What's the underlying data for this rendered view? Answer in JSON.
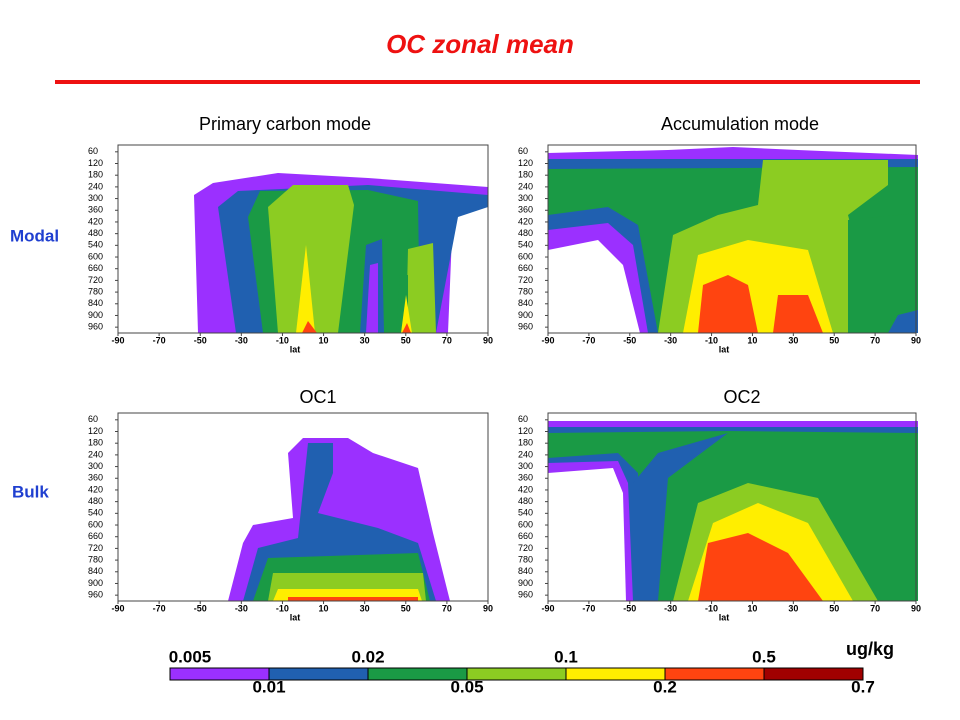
{
  "title": "OC zonal mean",
  "rows": [
    {
      "label": "Modal"
    },
    {
      "label": "Bulk"
    }
  ],
  "panels": [
    {
      "title": "Primary carbon mode",
      "xlabel": "lat",
      "xlim": [
        -90,
        90
      ],
      "xticks": [
        -90,
        -70,
        -50,
        -30,
        -10,
        10,
        30,
        50,
        70,
        90
      ],
      "ylim": [
        25,
        990
      ],
      "yticks": [
        60,
        120,
        180,
        240,
        300,
        360,
        420,
        480,
        540,
        600,
        660,
        720,
        780,
        840,
        900,
        960
      ]
    },
    {
      "title": "Accumulation mode",
      "xlabel": "lat",
      "xlim": [
        -90,
        90
      ],
      "xticks": [
        -90,
        -70,
        -50,
        -30,
        -10,
        10,
        30,
        50,
        70,
        90
      ],
      "ylim": [
        25,
        990
      ],
      "yticks": [
        60,
        120,
        180,
        240,
        300,
        360,
        420,
        480,
        540,
        600,
        660,
        720,
        780,
        840,
        900,
        960
      ]
    },
    {
      "title": "OC1",
      "xlabel": "lat",
      "xlim": [
        -90,
        90
      ],
      "xticks": [
        -90,
        -70,
        -50,
        -30,
        -10,
        10,
        30,
        50,
        70,
        90
      ],
      "ylim": [
        25,
        990
      ],
      "yticks": [
        60,
        120,
        180,
        240,
        300,
        360,
        420,
        480,
        540,
        600,
        660,
        720,
        780,
        840,
        900,
        960
      ]
    },
    {
      "title": "OC2",
      "xlabel": "lat",
      "xlim": [
        -90,
        90
      ],
      "xticks": [
        -90,
        -70,
        -50,
        -30,
        -10,
        10,
        30,
        50,
        70,
        90
      ],
      "ylim": [
        25,
        990
      ],
      "yticks": [
        60,
        120,
        180,
        240,
        300,
        360,
        420,
        480,
        540,
        600,
        660,
        720,
        780,
        840,
        900,
        960
      ]
    }
  ],
  "colorbar": {
    "unit": "ug/kg",
    "levels": [
      0.005,
      0.01,
      0.02,
      0.05,
      0.1,
      0.2,
      0.5,
      0.7
    ],
    "colors": [
      "#9b30ff",
      "#2060b0",
      "#1a9a45",
      "#8ccc22",
      "#ffee00",
      "#ff4410",
      "#a00000"
    ]
  }
}
